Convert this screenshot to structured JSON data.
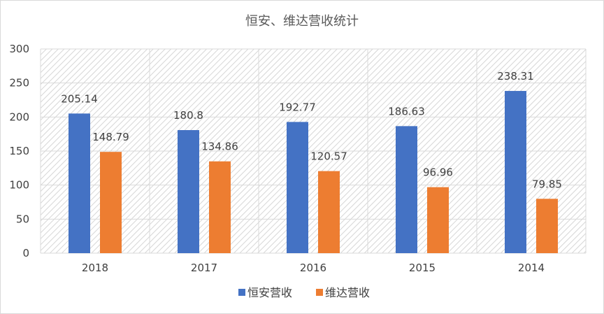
{
  "chart_data": {
    "type": "bar",
    "title": "恒安、维达营收统计",
    "categories": [
      "2018",
      "2017",
      "2016",
      "2015",
      "2014"
    ],
    "series": [
      {
        "name": "恒安营收",
        "values": [
          205.14,
          180.8,
          192.77,
          186.63,
          238.31
        ],
        "color": "#4472C4"
      },
      {
        "name": "维达营收",
        "values": [
          148.79,
          134.86,
          120.57,
          96.96,
          79.85
        ],
        "color": "#ED7D31"
      }
    ],
    "data_labels": [
      [
        "205.14",
        "180.8",
        "192.77",
        "186.63",
        "238.31"
      ],
      [
        "148.79",
        "134.86",
        "120.57",
        "96.96",
        "79.85"
      ]
    ],
    "ylim": [
      0,
      300
    ],
    "yticks": [
      0,
      50,
      100,
      150,
      200,
      250,
      300
    ],
    "grid": true,
    "legend": "bottom"
  }
}
